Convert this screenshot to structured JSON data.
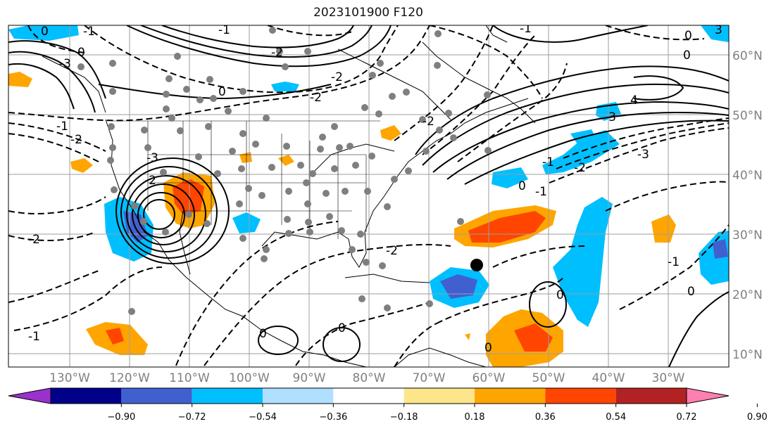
{
  "title": "2023101900 F120",
  "map": {
    "lon_range": [
      -140,
      -20
    ],
    "lat_range": [
      7,
      65
    ],
    "lon_labels": [
      "130°W",
      "120°W",
      "110°W",
      "100°W",
      "90°W",
      "80°W",
      "70°W",
      "60°W",
      "50°W",
      "40°W",
      "30°W"
    ],
    "lat_labels": [
      "10°N",
      "20°N",
      "30°N",
      "40°N",
      "50°N",
      "60°N"
    ],
    "contour_labels": [
      "-1",
      "-3",
      "0",
      "-1",
      "-2",
      "-1",
      "-2",
      "0",
      "-3",
      "-2",
      "-2",
      "-2",
      "-2",
      "-1",
      "0",
      "-1",
      "0",
      "-1",
      "0",
      "3",
      "4",
      "-3",
      "-3",
      "-1",
      "0",
      "0",
      "-1",
      "-1",
      "-2",
      "-2",
      "0"
    ],
    "fill_colors": {
      "light_orange": "#fedf8a",
      "orange": "#ffa500",
      "red_orange": "#ff4500",
      "dark_red": "#b22222",
      "pink": "#ff7fb0",
      "light_blue": "#b0e0ff",
      "sky_blue": "#00bfff",
      "royal_blue": "#4060d0",
      "navy": "#00008b",
      "purple": "#9932cc"
    }
  },
  "colorbar": {
    "ticks": [
      "−0.90",
      "−0.72",
      "−0.54",
      "−0.36",
      "−0.18",
      "0.18",
      "0.36",
      "0.54",
      "0.72",
      "0.90"
    ],
    "colors": [
      "#9932cc",
      "#00008b",
      "#4060d0",
      "#00bfff",
      "#b0e0ff",
      "#ffffff",
      "#fde68a",
      "#ffa500",
      "#ff4500",
      "#b22222",
      "#ff7fb0"
    ]
  }
}
